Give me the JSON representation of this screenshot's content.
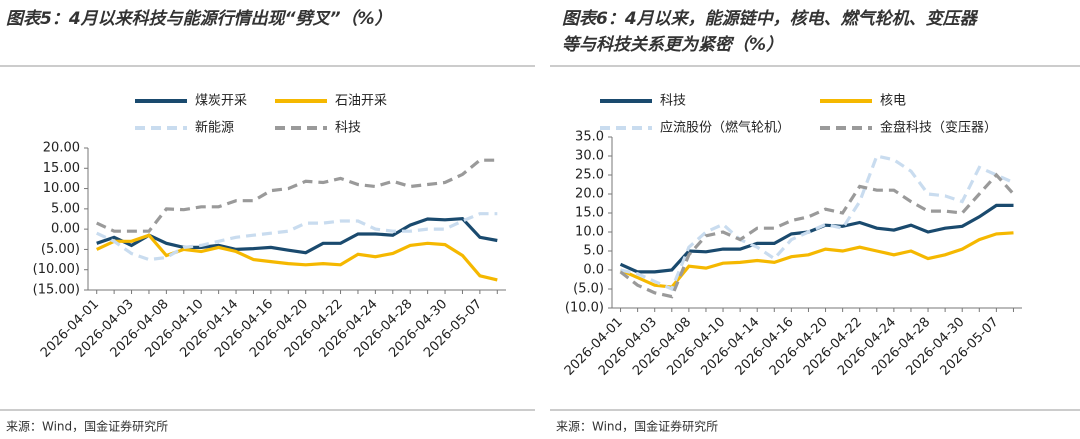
{
  "chart_data": [
    {
      "type": "line",
      "title": "图表5：4月以来科技与能源行情出现“劈叉”（%）",
      "source": "来源：Wind，国金证券研究所",
      "categories": [
        "2026-04-01",
        null,
        "2026-04-03",
        null,
        "2026-04-08",
        null,
        "2026-04-10",
        null,
        "2026-04-14",
        null,
        "2026-04-16",
        null,
        "2026-04-20",
        null,
        "2026-04-22",
        null,
        "2026-04-24",
        null,
        "2026-04-28",
        null,
        "2026-04-30",
        null,
        "2026-05-07",
        null
      ],
      "ylim": [
        -15,
        20
      ],
      "yticks": [
        {
          "value": 20,
          "label": "20.00"
        },
        {
          "value": 15,
          "label": "15.00"
        },
        {
          "value": 10,
          "label": "10.00"
        },
        {
          "value": 5,
          "label": "5.00"
        },
        {
          "value": 0,
          "label": "0.00"
        },
        {
          "value": -5,
          "label": "(5.00)"
        },
        {
          "value": -10,
          "label": "(10.00)"
        },
        {
          "value": -15,
          "label": "(15.00)"
        }
      ],
      "negative_tick_color": "#e0281e",
      "series": [
        {
          "name": "煤炭开采",
          "color": "#1a4a6e",
          "dash": false,
          "values": [
            -3.5,
            -2,
            -4,
            -1.5,
            -3.5,
            -4.5,
            -4.5,
            -4,
            -5,
            -4.8,
            -4.5,
            -5.2,
            -5.8,
            -3.5,
            -3.5,
            -1.2,
            -1.2,
            -1.5,
            1,
            2.5,
            2.3,
            2.6,
            -2,
            -2.8
          ]
        },
        {
          "name": "石油开采",
          "color": "#f5b800",
          "dash": false,
          "values": [
            -5,
            -3,
            -3,
            -1.5,
            -6.5,
            -5,
            -5.5,
            -4.5,
            -5.5,
            -7.5,
            -8,
            -8.5,
            -8.8,
            -8.5,
            -8.8,
            -6.2,
            -6.8,
            -6,
            -4,
            -3.5,
            -3.8,
            -6.5,
            -11.5,
            -12.5
          ]
        },
        {
          "name": "新能源",
          "color": "#c9dcef",
          "dash": true,
          "values": [
            -1,
            -3,
            -6,
            -7.5,
            -7,
            -4.5,
            -4,
            -3,
            -2,
            -1.5,
            -1,
            -0.5,
            1.5,
            1.5,
            2,
            2,
            0,
            -0.5,
            -0.5,
            0,
            0,
            2,
            3.8,
            3.8
          ]
        },
        {
          "name": "科技",
          "color": "#9a9a9a",
          "dash": true,
          "values": [
            1.5,
            -0.5,
            -0.5,
            -0.5,
            5,
            4.8,
            5.5,
            5.5,
            7,
            7,
            9.5,
            10,
            11.8,
            11.5,
            12.5,
            11,
            10.5,
            11.8,
            10.5,
            11,
            11.5,
            13.5,
            17,
            17
          ]
        }
      ]
    },
    {
      "type": "line",
      "title": "图表6：4月以来，能源链中，核电、燃气轮机、变压器等与科技关系更为紧密（%）",
      "source": "来源：Wind，国金证券研究所",
      "categories": [
        "2026-04-01",
        null,
        "2026-04-03",
        null,
        "2026-04-08",
        null,
        "2026-04-10",
        null,
        "2026-04-14",
        null,
        "2026-04-16",
        null,
        "2026-04-20",
        null,
        "2026-04-22",
        null,
        "2026-04-24",
        null,
        "2026-04-28",
        null,
        "2026-04-30",
        null,
        "2026-05-07",
        null
      ],
      "ylim": [
        -10,
        35
      ],
      "yticks": [
        {
          "value": 35,
          "label": "35.0"
        },
        {
          "value": 30,
          "label": "30.0"
        },
        {
          "value": 25,
          "label": "25.0"
        },
        {
          "value": 20,
          "label": "20.0"
        },
        {
          "value": 15,
          "label": "15.0"
        },
        {
          "value": 10,
          "label": "10.0"
        },
        {
          "value": 5,
          "label": "5.0"
        },
        {
          "value": 0,
          "label": "0.0"
        },
        {
          "value": -5,
          "label": "(5.0)"
        },
        {
          "value": -10,
          "label": "(10.0)"
        }
      ],
      "negative_tick_color": "#e0281e",
      "series": [
        {
          "name": "科技",
          "color": "#1a4a6e",
          "dash": false,
          "values": [
            1.5,
            -0.5,
            -0.5,
            0,
            5,
            4.8,
            5.5,
            5.5,
            7,
            7,
            9.5,
            10,
            11.8,
            11.5,
            12.5,
            11,
            10.5,
            11.8,
            10,
            11,
            11.5,
            14,
            17,
            17
          ]
        },
        {
          "name": "核电",
          "color": "#f5b800",
          "dash": false,
          "values": [
            0,
            -2,
            -4,
            -4.5,
            1,
            0.5,
            1.8,
            2,
            2.5,
            2,
            3.5,
            4,
            5.5,
            5,
            6,
            5,
            4,
            5,
            3,
            4,
            5.5,
            8,
            9.5,
            9.8
          ]
        },
        {
          "name": "应流股份（燃气轮机）",
          "color": "#c9dcef",
          "dash": true,
          "values": [
            0,
            -1,
            -3,
            -5,
            6,
            10,
            12,
            8,
            6,
            3,
            8,
            10,
            12,
            11,
            18,
            30,
            29,
            26,
            20,
            19.5,
            18,
            27,
            25,
            23
          ]
        },
        {
          "name": "金盘科技（变压器）",
          "color": "#9a9a9a",
          "dash": true,
          "values": [
            -0.5,
            -4,
            -6,
            -7,
            4,
            9,
            10,
            8,
            11,
            11,
            13,
            14,
            16,
            15,
            22,
            21,
            21,
            18,
            15.5,
            15.5,
            15,
            20,
            25,
            20
          ]
        }
      ]
    }
  ]
}
